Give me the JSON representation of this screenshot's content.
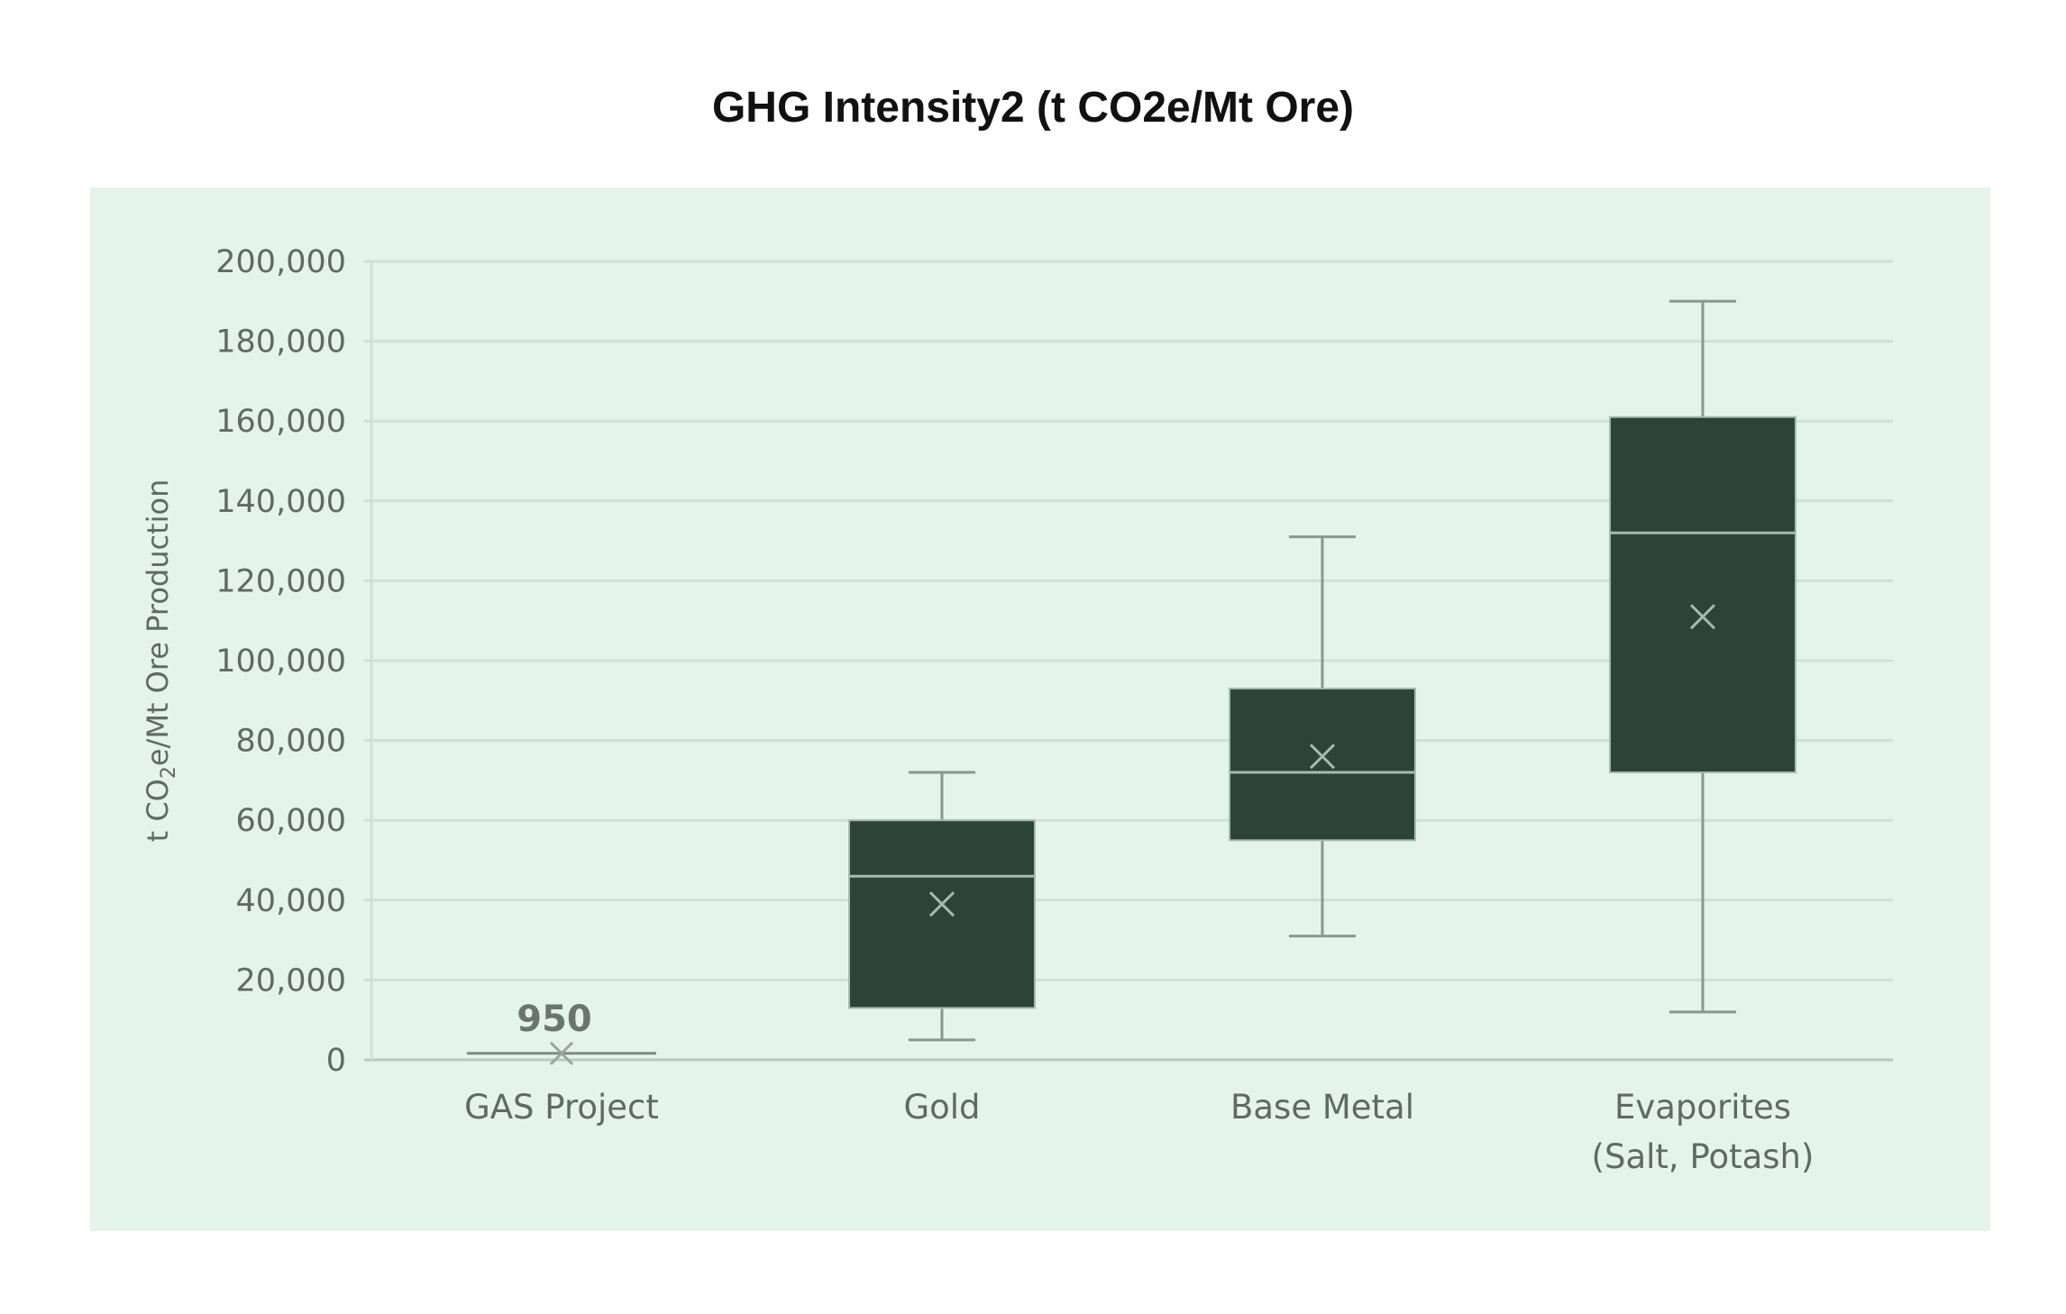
{
  "title": "GHG Intensity2 (t CO2e/Mt Ore)",
  "colors": {
    "panel": "#e4f4ea",
    "box_fill": "#2d4238",
    "box_inner_line": "#a7bab0",
    "whisker": "#8a9690",
    "grid": "#cfe0d6",
    "text": "#5f6a64"
  },
  "chart_data": {
    "type": "box",
    "title": "GHG Intensity2 (t CO2e/Mt Ore)",
    "ylabel_parts": {
      "prefix": "t CO",
      "subscript": "2",
      "suffix": "e/Mt Ore Production"
    },
    "ylim": [
      0,
      200000
    ],
    "yticks": [
      0,
      20000,
      40000,
      60000,
      80000,
      100000,
      120000,
      140000,
      160000,
      180000,
      200000
    ],
    "ytick_labels": [
      "0",
      "20,000",
      "40,000",
      "60,000",
      "80,000",
      "100,000",
      "120,000",
      "140,000",
      "160,000",
      "180,000",
      "200,000"
    ],
    "grid": true,
    "categories": [
      {
        "label_lines": [
          "GAS Project"
        ],
        "min": 950,
        "q1": 950,
        "median": 950,
        "q3": 950,
        "max": 950,
        "mean": 950,
        "data_label": "950"
      },
      {
        "label_lines": [
          "Gold"
        ],
        "min": 5000,
        "q1": 13000,
        "median": 46000,
        "q3": 60000,
        "max": 72000,
        "mean": 39000
      },
      {
        "label_lines": [
          "Base Metal"
        ],
        "min": 31000,
        "q1": 55000,
        "median": 72000,
        "q3": 93000,
        "max": 131000,
        "mean": 76000
      },
      {
        "label_lines": [
          "Evaporites",
          "(Salt, Potash)"
        ],
        "min": 12000,
        "q1": 72000,
        "median": 132000,
        "q3": 161000,
        "max": 190000,
        "mean": 111000
      }
    ]
  }
}
